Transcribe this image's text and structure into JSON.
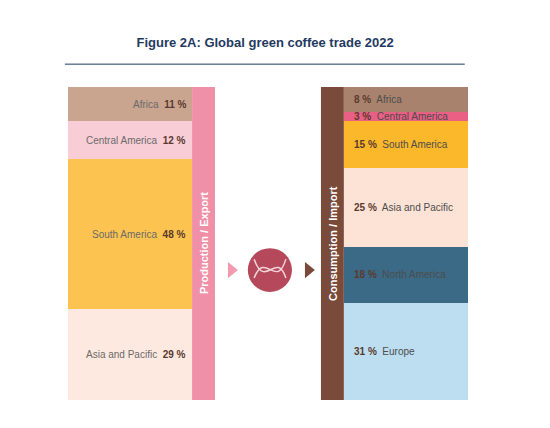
{
  "chart_data": {
    "type": "bar",
    "title": "Figure 2A: Global green coffee trade 2022",
    "stacked": true,
    "data_labels": true,
    "tick_labels": false,
    "categories": [
      "Production / Export",
      "Consumption / Import"
    ],
    "ylim": [
      0,
      100
    ],
    "series": [
      {
        "name": "Africa",
        "values": [
          11,
          8
        ],
        "value_labels": [
          "11 %",
          "8 %"
        ],
        "colors": [
          "#c9a48e",
          "#a9826e"
        ]
      },
      {
        "name": "Central America",
        "values": [
          12,
          3
        ],
        "value_labels": [
          "12 %",
          "3 %"
        ],
        "colors": [
          "#f8cdd5",
          "#ea5f84"
        ]
      },
      {
        "name": "South America",
        "values": [
          48,
          15
        ],
        "value_labels": [
          "48 %",
          "15 %"
        ],
        "colors": [
          "#fcc350",
          "#fbb82a"
        ]
      },
      {
        "name": "Asia and Pacific",
        "values": [
          29,
          25
        ],
        "value_labels": [
          "29 %",
          "25 %"
        ],
        "colors": [
          "#fde9df",
          "#fde3d6"
        ]
      },
      {
        "name": "North America",
        "values": [
          null,
          18
        ],
        "value_labels": [
          null,
          "18 %"
        ],
        "colors": [
          "#3b6a86",
          "#3b6a86"
        ]
      },
      {
        "name": "Europe",
        "values": [
          null,
          31
        ],
        "value_labels": [
          null,
          "31 %"
        ],
        "colors": [
          "#bcdef0",
          "#bcdef0"
        ]
      }
    ]
  }
}
